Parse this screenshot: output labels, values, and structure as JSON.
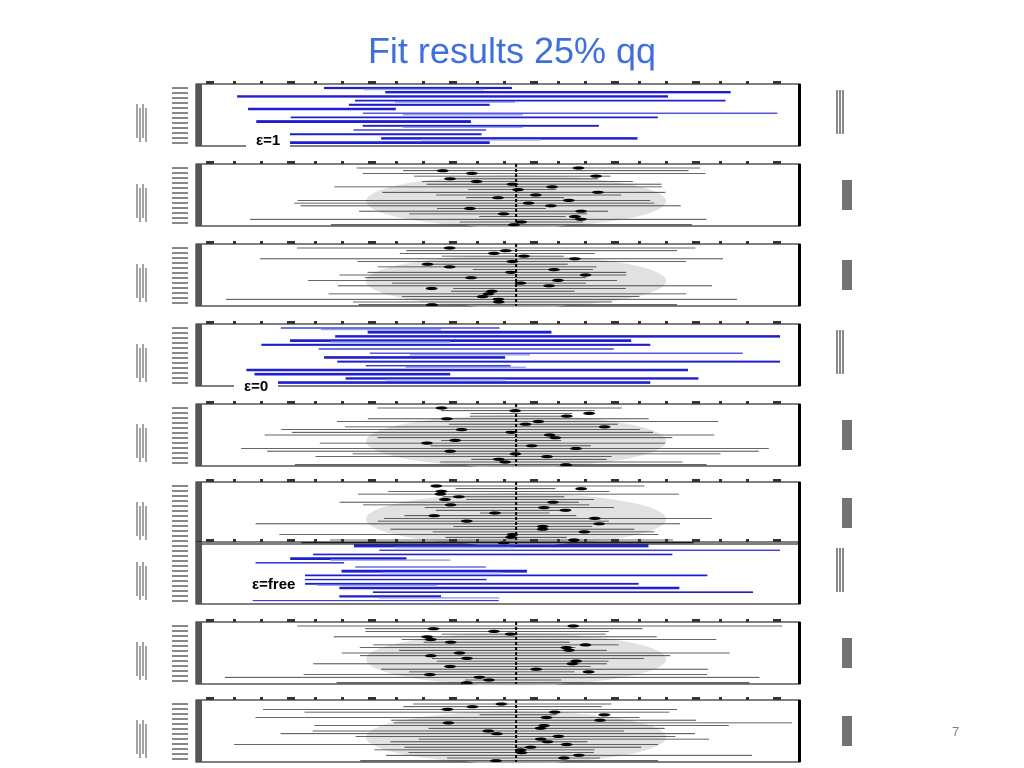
{
  "slide": {
    "title": "Fit results 25% qq",
    "page_number": "7"
  },
  "colors": {
    "title": "#3f6fdc",
    "fit_line": "#1f1fd0",
    "fit_highlight": "#9aa8e8",
    "grid_mark": "#000000",
    "shade": "#c8c8c8"
  },
  "panels": [
    {
      "id": "eps1-a",
      "style": "blue"
    },
    {
      "id": "eps1-b",
      "style": "gray"
    },
    {
      "id": "eps1-c",
      "style": "gray"
    },
    {
      "id": "eps0-a",
      "style": "blue"
    },
    {
      "id": "eps0-b",
      "style": "gray"
    },
    {
      "id": "eps0-c",
      "style": "gray"
    },
    {
      "id": "epsfree-a",
      "style": "blue"
    },
    {
      "id": "epsfree-b",
      "style": "gray"
    },
    {
      "id": "epsfree-c",
      "style": "gray"
    }
  ],
  "labels": {
    "eps1": "ε=1",
    "eps0": "ε=0",
    "epsfree": "ε=free"
  }
}
